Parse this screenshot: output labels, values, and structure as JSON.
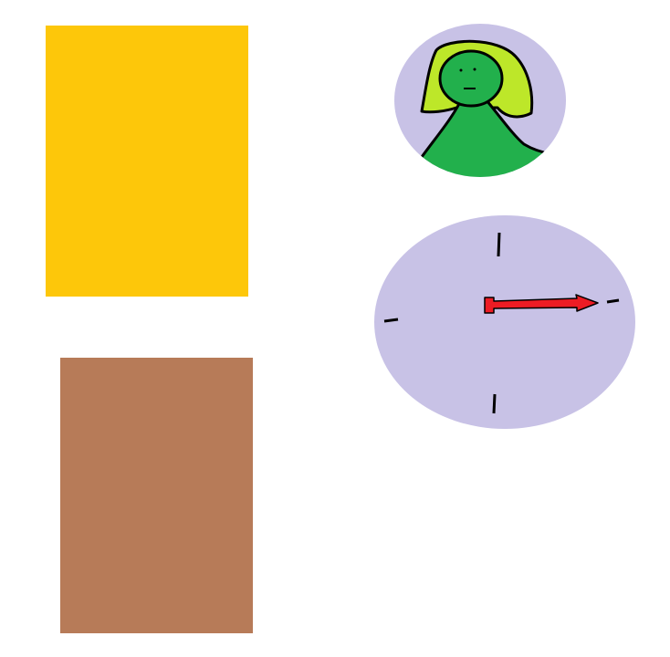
{
  "colors": {
    "background": "#ffffff",
    "yellow_rect": "#fdc70a",
    "brown_rect": "#b77b58",
    "circle_bg": "#c8c2e6",
    "hair": "#bde729",
    "body": "#22b04c",
    "outline": "#000000",
    "clock_hand": "#ed1c24"
  },
  "icons": {
    "avatar": "person-avatar-icon",
    "clock": "clock-icon"
  },
  "clock": {
    "hand_direction": "3 o'clock"
  }
}
